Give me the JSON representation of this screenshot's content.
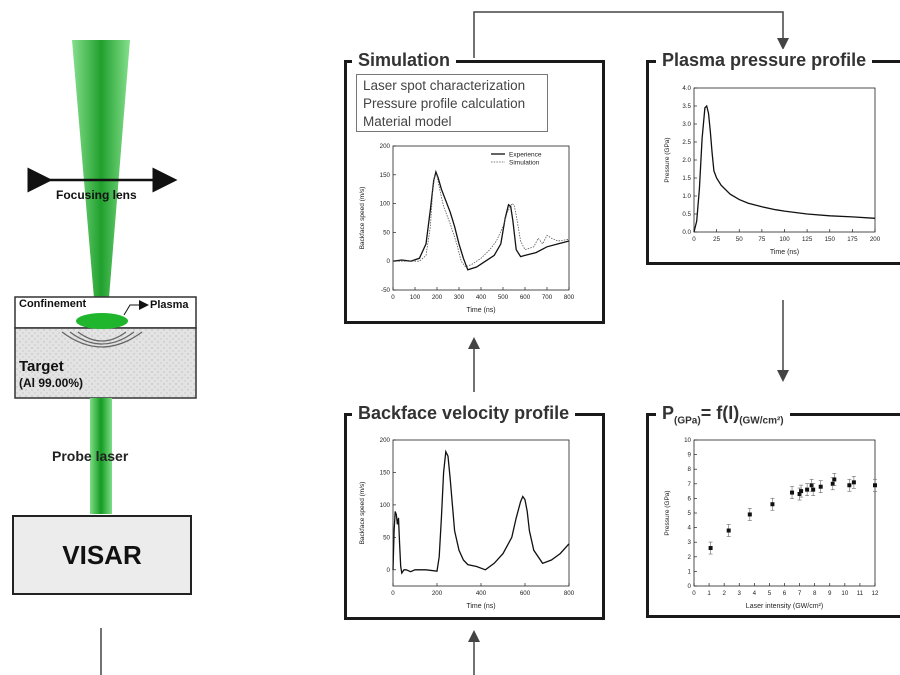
{
  "left": {
    "focusing_lens": "Focusing lens",
    "confinement": "Confinement",
    "plasma": "Plasma",
    "target": "Target",
    "target_material": "(Al 99.00%)",
    "probe_laser": "Probe laser",
    "visar": "VISAR"
  },
  "panels": {
    "simulation": {
      "title": "Simulation",
      "list": [
        "Laser spot characterization",
        "Pressure profile calculation",
        "Material model"
      ]
    },
    "plasma": {
      "title": "Plasma pressure profile"
    },
    "backface": {
      "title": "Backface velocity profile"
    },
    "pf": {
      "title_p": "P",
      "title_sub1": "(GPa)",
      "title_mid": "= f(I)",
      "title_sub2": "(GW/cm²)"
    }
  },
  "colors": {
    "laser_green": "#2dbd3a",
    "frame": "#1a1a1a"
  },
  "chart_data": [
    {
      "id": "simulation",
      "type": "line",
      "xlabel": "Time (ns)",
      "ylabel": "Backface speed (m/s)",
      "xlim": [
        0,
        800
      ],
      "ylim": [
        -50,
        200
      ],
      "xticks": [
        0,
        100,
        200,
        300,
        400,
        500,
        600,
        700,
        800
      ],
      "yticks": [
        -50,
        0,
        50,
        100,
        150,
        200
      ],
      "legend_position": "top-right",
      "series": [
        {
          "name": "Experience",
          "x": [
            0,
            40,
            80,
            120,
            150,
            170,
            185,
            195,
            205,
            220,
            240,
            260,
            280,
            300,
            320,
            340,
            380,
            420,
            460,
            490,
            510,
            525,
            535,
            545,
            560,
            580,
            600,
            650,
            700,
            750,
            800
          ],
          "y": [
            0,
            2,
            0,
            5,
            30,
            90,
            140,
            155,
            145,
            125,
            105,
            85,
            60,
            30,
            5,
            -15,
            -10,
            0,
            10,
            30,
            75,
            98,
            95,
            70,
            20,
            8,
            10,
            15,
            25,
            30,
            35
          ]
        },
        {
          "name": "Simulation",
          "x": [
            0,
            60,
            120,
            150,
            170,
            180,
            190,
            200,
            215,
            230,
            260,
            290,
            310,
            330,
            360,
            400,
            440,
            470,
            500,
            520,
            540,
            550,
            560,
            580,
            600,
            640,
            660,
            680,
            700,
            720,
            750,
            800
          ],
          "y": [
            0,
            0,
            0,
            10,
            60,
            120,
            150,
            148,
            120,
            95,
            65,
            30,
            0,
            -10,
            -5,
            5,
            20,
            35,
            60,
            85,
            100,
            98,
            80,
            35,
            20,
            25,
            40,
            30,
            45,
            40,
            35,
            38
          ]
        }
      ]
    },
    {
      "id": "plasma",
      "type": "line",
      "xlabel": "Time (ns)",
      "ylabel": "Pressure (GPa)",
      "xlim": [
        0,
        200
      ],
      "ylim": [
        0,
        4
      ],
      "xticks": [
        0,
        25,
        50,
        75,
        100,
        125,
        150,
        175,
        200
      ],
      "yticks": [
        0,
        0.5,
        1.0,
        1.5,
        2.0,
        2.5,
        3.0,
        3.5,
        4.0
      ],
      "series": [
        {
          "x": [
            0,
            3,
            6,
            9,
            12,
            14,
            16,
            18,
            20,
            22,
            25,
            30,
            40,
            50,
            60,
            75,
            90,
            100,
            125,
            150,
            175,
            200
          ],
          "y": [
            0,
            0.3,
            1.2,
            2.6,
            3.45,
            3.5,
            3.3,
            2.8,
            2.2,
            1.7,
            1.5,
            1.3,
            1.05,
            0.9,
            0.8,
            0.7,
            0.62,
            0.58,
            0.5,
            0.45,
            0.42,
            0.38
          ]
        }
      ]
    },
    {
      "id": "backface",
      "type": "line",
      "xlabel": "Time (ns)",
      "ylabel": "Backface speed (m/s)",
      "xlim": [
        0,
        800
      ],
      "ylim": [
        -25,
        200
      ],
      "xticks": [
        0,
        200,
        400,
        600,
        800
      ],
      "yticks": [
        0,
        50,
        100,
        150,
        200
      ],
      "series": [
        {
          "x": [
            0,
            5,
            10,
            15,
            20,
            25,
            30,
            35,
            40,
            50,
            60,
            80,
            100,
            150,
            200,
            210,
            220,
            230,
            240,
            250,
            260,
            270,
            280,
            300,
            320,
            340,
            380,
            420,
            460,
            500,
            540,
            560,
            580,
            590,
            600,
            610,
            620,
            640,
            680,
            720,
            760,
            800
          ],
          "y": [
            0,
            60,
            90,
            85,
            70,
            80,
            40,
            5,
            -5,
            0,
            0,
            -3,
            0,
            0,
            -2,
            20,
            80,
            150,
            182,
            175,
            140,
            100,
            60,
            30,
            15,
            8,
            5,
            0,
            10,
            25,
            50,
            80,
            105,
            113,
            108,
            90,
            60,
            30,
            10,
            15,
            25,
            40
          ]
        }
      ]
    },
    {
      "id": "pf",
      "type": "scatter",
      "xlabel": "Laser intensity (GW/cm²)",
      "ylabel": "Pressure (GPa)",
      "xlim": [
        0,
        12
      ],
      "ylim": [
        0,
        10
      ],
      "xticks": [
        0,
        1,
        2,
        3,
        4,
        5,
        6,
        7,
        8,
        9,
        10,
        11,
        12
      ],
      "yticks": [
        0,
        1,
        2,
        3,
        4,
        5,
        6,
        7,
        8,
        9,
        10
      ],
      "series": [
        {
          "x": [
            1.1,
            2.3,
            3.7,
            5.2,
            6.5,
            7.0,
            7.1,
            7.5,
            7.8,
            7.9,
            8.4,
            9.2,
            9.3,
            10.3,
            10.6,
            12
          ],
          "y": [
            2.6,
            3.8,
            4.9,
            5.6,
            6.4,
            6.3,
            6.5,
            6.6,
            6.9,
            6.6,
            6.8,
            7.0,
            7.3,
            6.9,
            7.1,
            6.9
          ]
        }
      ]
    }
  ]
}
